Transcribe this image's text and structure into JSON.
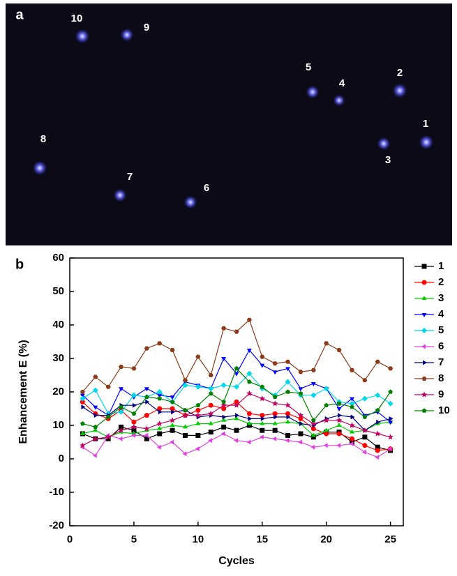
{
  "panel_a": {
    "panel_label": "a",
    "spot_labels": [
      "1",
      "2",
      "3",
      "4",
      "5",
      "6",
      "7",
      "8",
      "9",
      "10"
    ]
  },
  "chart_data": {
    "type": "line",
    "panel_label": "b",
    "x_label": "Cycles",
    "y_label": "Enhancement E (%)",
    "x": [
      1,
      2,
      3,
      4,
      5,
      6,
      7,
      8,
      9,
      10,
      11,
      12,
      13,
      14,
      15,
      16,
      17,
      18,
      19,
      20,
      21,
      22,
      23,
      24,
      25
    ],
    "xlim": [
      0,
      26
    ],
    "xticks": [
      0,
      5,
      10,
      15,
      20,
      25
    ],
    "ylim": [
      -20,
      60
    ],
    "yticks": [
      -20,
      -10,
      0,
      10,
      20,
      30,
      40,
      50,
      60
    ],
    "series": [
      {
        "name": "1",
        "color": "#000000",
        "marker": "square",
        "values": [
          7.5,
          6,
          6,
          9.5,
          8.5,
          6,
          7.5,
          8.5,
          7,
          7,
          8,
          9.5,
          8.5,
          10,
          8.5,
          8.5,
          7,
          7.5,
          6.5,
          8,
          8,
          5,
          6.5,
          3.5,
          2.5
        ]
      },
      {
        "name": "2",
        "color": "#ff0000",
        "marker": "circle",
        "values": [
          17,
          13.5,
          12,
          14.5,
          11,
          13,
          15,
          15,
          13,
          14.5,
          16,
          15,
          17,
          13.5,
          13,
          13.5,
          13.5,
          12,
          9,
          7.5,
          7.5,
          6,
          4,
          2.5,
          3
        ]
      },
      {
        "name": "3",
        "color": "#00cc00",
        "marker": "up",
        "values": [
          7.5,
          8.5,
          6.5,
          8,
          7.5,
          8.5,
          9,
          10,
          9.5,
          10.5,
          10.5,
          11.5,
          12,
          10.5,
          10.5,
          10.5,
          11,
          10.5,
          7,
          8.5,
          10,
          8,
          8.5,
          10.5,
          11
        ]
      },
      {
        "name": "4",
        "color": "#0000ff",
        "marker": "down",
        "values": [
          19,
          15.5,
          13,
          21,
          18.5,
          21,
          19,
          18.5,
          23,
          22,
          21,
          30,
          25.5,
          32.5,
          28,
          26,
          27,
          21,
          22.5,
          21,
          15,
          18,
          13,
          14,
          11
        ]
      },
      {
        "name": "5",
        "color": "#00d8e8",
        "marker": "diamond",
        "values": [
          18,
          20.5,
          13.5,
          14,
          19,
          18.5,
          20,
          17,
          22,
          21.5,
          21,
          22,
          21.5,
          25.5,
          21,
          19,
          23,
          19,
          19,
          21,
          17,
          16.5,
          18,
          19,
          16.5
        ]
      },
      {
        "name": "6",
        "color": "#e040e0",
        "marker": "left",
        "values": [
          3.5,
          1,
          7,
          6,
          7,
          7,
          3.5,
          5,
          1.5,
          3,
          5.5,
          7.5,
          5.5,
          5,
          6.5,
          6,
          5.5,
          5,
          3.5,
          4,
          4,
          4.5,
          2,
          0.5,
          3
        ]
      },
      {
        "name": "7",
        "color": "#000080",
        "marker": "right",
        "values": [
          15.5,
          13,
          13,
          16,
          16,
          17,
          14,
          14,
          14.5,
          12.5,
          13,
          12.5,
          13,
          12,
          12,
          12.5,
          12.5,
          10.5,
          10,
          12,
          13,
          12.5,
          8.5,
          11,
          12
        ]
      },
      {
        "name": "8",
        "color": "#8b3a1a",
        "marker": "hexagon",
        "values": [
          20,
          24.5,
          21.5,
          27.5,
          27,
          33,
          34.5,
          32.5,
          23.5,
          30.5,
          25,
          39,
          38,
          41.5,
          30.5,
          28.5,
          29,
          26,
          26.5,
          34.5,
          32.5,
          26.5,
          23.5,
          29,
          27
        ]
      },
      {
        "name": "9",
        "color": "#c00060",
        "marker": "star",
        "values": [
          4,
          6,
          6.5,
          8.5,
          9.5,
          9,
          10.5,
          11.5,
          13,
          13,
          13.5,
          16,
          16,
          19.5,
          18,
          16.5,
          16,
          13,
          10.5,
          11.5,
          11.5,
          10,
          8.5,
          7.5,
          6.5
        ]
      },
      {
        "name": "10",
        "color": "#008000",
        "marker": "pentagon",
        "values": [
          10.5,
          9.5,
          12.5,
          15.5,
          13.5,
          18.5,
          18,
          17,
          14.5,
          16,
          19.5,
          17,
          27,
          23,
          21.5,
          18.5,
          20,
          19.5,
          11.5,
          16,
          16.5,
          15.5,
          12.5,
          14.5,
          20
        ]
      }
    ]
  }
}
